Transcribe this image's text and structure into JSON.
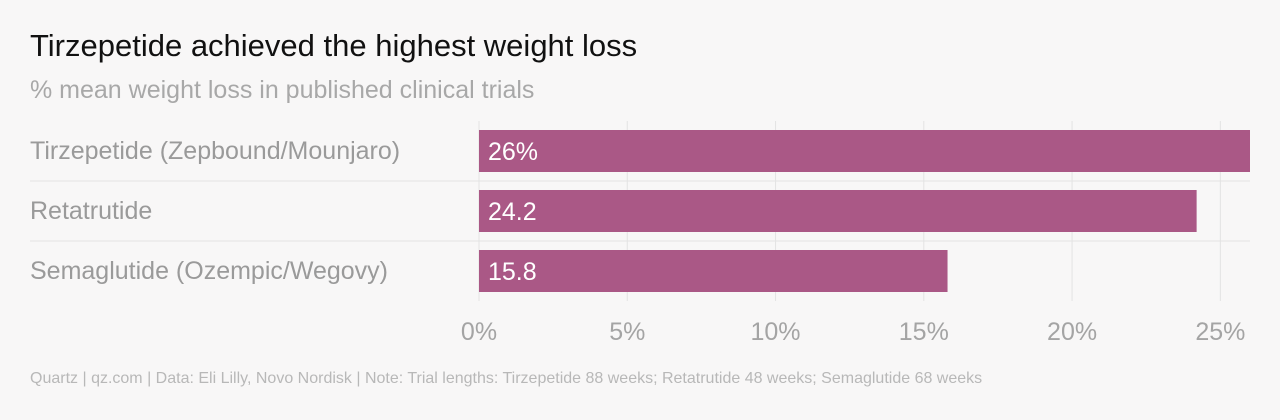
{
  "chart_data": {
    "type": "bar",
    "orientation": "horizontal",
    "title": "Tirzepetide achieved the highest weight loss",
    "subtitle": "% mean weight loss in published clinical trials",
    "categories": [
      "Tirzepetide (Zepbound/Mounjaro)",
      "Retatrutide",
      "Semaglutide (Ozempic/Wegovy)"
    ],
    "values": [
      26,
      24.2,
      15.8
    ],
    "value_labels": [
      "26%",
      "24.2",
      "15.8"
    ],
    "xlim": [
      0,
      26
    ],
    "x_ticks": [
      0,
      5,
      10,
      15,
      20,
      25
    ],
    "x_tick_labels": [
      "0%",
      "5%",
      "10%",
      "15%",
      "20%",
      "25%"
    ],
    "xlabel": "",
    "ylabel": "",
    "grid": true,
    "bar_color": "#aa5886",
    "source": "Quartz | qz.com | Data: Eli Lilly, Novo Nordisk | Note: Trial lengths: Tirzepetide 88 weeks; Retatrutide 48 weeks; Semaglutide 68 weeks"
  }
}
